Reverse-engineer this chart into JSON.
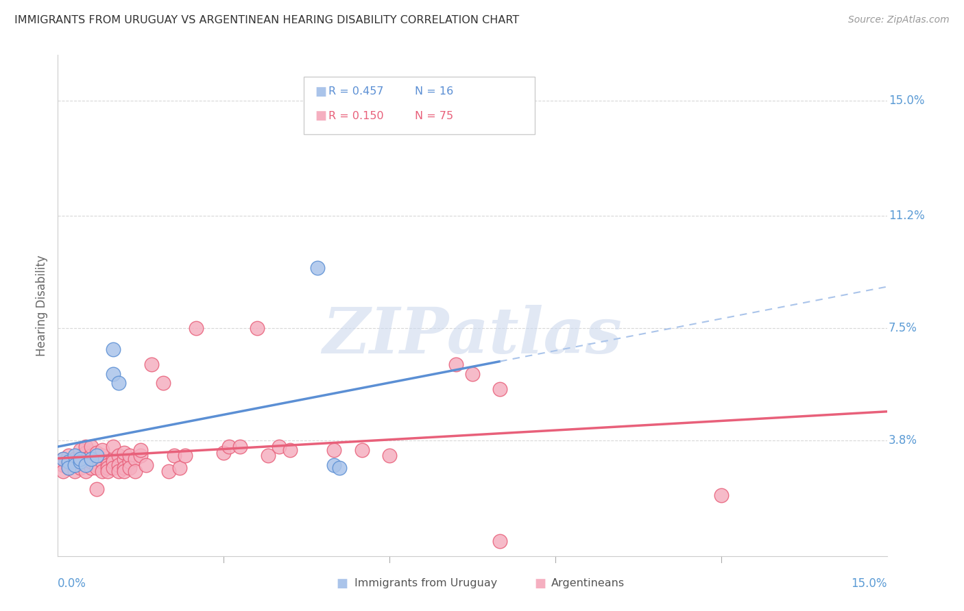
{
  "title": "IMMIGRANTS FROM URUGUAY VS ARGENTINEAN HEARING DISABILITY CORRELATION CHART",
  "source": "Source: ZipAtlas.com",
  "ylabel": "Hearing Disability",
  "ytick_labels": [
    "15.0%",
    "11.2%",
    "7.5%",
    "3.8%"
  ],
  "ytick_values": [
    0.15,
    0.112,
    0.075,
    0.038
  ],
  "xlim": [
    0.0,
    0.15
  ],
  "ylim": [
    0.0,
    0.165
  ],
  "color_uruguay": "#aac4ea",
  "color_argentina": "#f5afc0",
  "line_color_uruguay": "#5b8fd4",
  "line_color_argentina": "#e8607a",
  "dashed_color_uruguay": "#aac4ea",
  "watermark": "ZIPatlas",
  "background_color": "#ffffff",
  "grid_color": "#d8d8d8",
  "uruguay_points": [
    [
      0.001,
      0.032
    ],
    [
      0.002,
      0.031
    ],
    [
      0.002,
      0.029
    ],
    [
      0.003,
      0.033
    ],
    [
      0.003,
      0.03
    ],
    [
      0.004,
      0.031
    ],
    [
      0.004,
      0.032
    ],
    [
      0.005,
      0.03
    ],
    [
      0.006,
      0.032
    ],
    [
      0.007,
      0.033
    ],
    [
      0.01,
      0.06
    ],
    [
      0.01,
      0.068
    ],
    [
      0.011,
      0.057
    ],
    [
      0.047,
      0.095
    ],
    [
      0.05,
      0.03
    ],
    [
      0.051,
      0.029
    ]
  ],
  "argentina_points": [
    [
      0.001,
      0.032
    ],
    [
      0.001,
      0.03
    ],
    [
      0.001,
      0.028
    ],
    [
      0.002,
      0.031
    ],
    [
      0.002,
      0.033
    ],
    [
      0.002,
      0.029
    ],
    [
      0.003,
      0.03
    ],
    [
      0.003,
      0.032
    ],
    [
      0.003,
      0.028
    ],
    [
      0.004,
      0.033
    ],
    [
      0.004,
      0.035
    ],
    [
      0.004,
      0.029
    ],
    [
      0.004,
      0.031
    ],
    [
      0.005,
      0.034
    ],
    [
      0.005,
      0.036
    ],
    [
      0.005,
      0.028
    ],
    [
      0.005,
      0.032
    ],
    [
      0.006,
      0.029
    ],
    [
      0.006,
      0.031
    ],
    [
      0.006,
      0.033
    ],
    [
      0.006,
      0.036
    ],
    [
      0.007,
      0.03
    ],
    [
      0.007,
      0.032
    ],
    [
      0.007,
      0.029
    ],
    [
      0.007,
      0.034
    ],
    [
      0.007,
      0.022
    ],
    [
      0.008,
      0.031
    ],
    [
      0.008,
      0.028
    ],
    [
      0.008,
      0.033
    ],
    [
      0.008,
      0.035
    ],
    [
      0.009,
      0.03
    ],
    [
      0.009,
      0.029
    ],
    [
      0.009,
      0.028
    ],
    [
      0.01,
      0.032
    ],
    [
      0.01,
      0.031
    ],
    [
      0.01,
      0.036
    ],
    [
      0.01,
      0.029
    ],
    [
      0.011,
      0.033
    ],
    [
      0.011,
      0.03
    ],
    [
      0.011,
      0.028
    ],
    [
      0.012,
      0.032
    ],
    [
      0.012,
      0.029
    ],
    [
      0.012,
      0.034
    ],
    [
      0.012,
      0.028
    ],
    [
      0.013,
      0.031
    ],
    [
      0.013,
      0.033
    ],
    [
      0.013,
      0.029
    ],
    [
      0.014,
      0.032
    ],
    [
      0.014,
      0.028
    ],
    [
      0.015,
      0.033
    ],
    [
      0.015,
      0.035
    ],
    [
      0.016,
      0.03
    ],
    [
      0.017,
      0.063
    ],
    [
      0.019,
      0.057
    ],
    [
      0.02,
      0.028
    ],
    [
      0.021,
      0.033
    ],
    [
      0.022,
      0.029
    ],
    [
      0.023,
      0.033
    ],
    [
      0.025,
      0.075
    ],
    [
      0.03,
      0.034
    ],
    [
      0.031,
      0.036
    ],
    [
      0.033,
      0.036
    ],
    [
      0.036,
      0.075
    ],
    [
      0.038,
      0.033
    ],
    [
      0.04,
      0.036
    ],
    [
      0.042,
      0.035
    ],
    [
      0.05,
      0.035
    ],
    [
      0.055,
      0.035
    ],
    [
      0.06,
      0.033
    ],
    [
      0.072,
      0.063
    ],
    [
      0.075,
      0.06
    ],
    [
      0.08,
      0.055
    ],
    [
      0.12,
      0.02
    ],
    [
      0.08,
      0.005
    ]
  ]
}
